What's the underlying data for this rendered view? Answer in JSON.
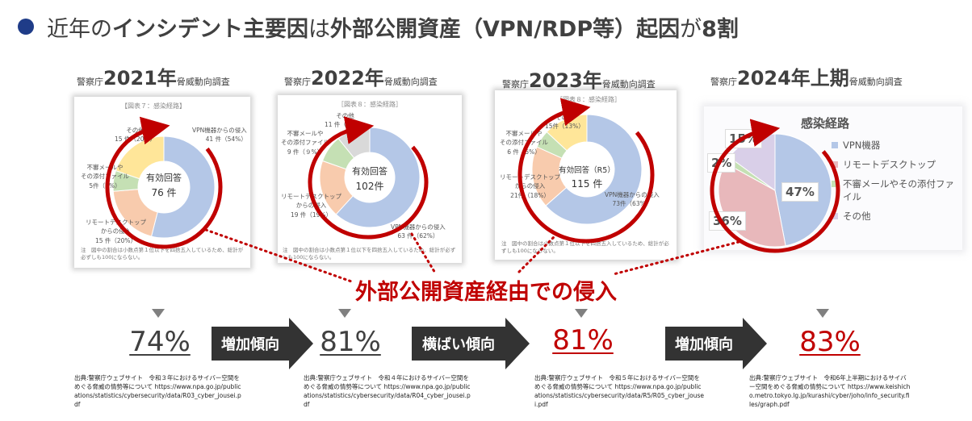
{
  "headline": {
    "part1": "近年の",
    "part2": "インシデント主要因",
    "part3": "は",
    "part4": "外部公開資産（VPN/RDP等）起因",
    "part5": "が",
    "part6": "8割"
  },
  "callout": "外部公開資産経由での侵入",
  "colors": {
    "bullet": "#1f3c88",
    "accent_red": "#c00000",
    "arrow_dark": "#333333",
    "vpn": "#b4c7e7",
    "rdp": "#f8cbad",
    "mail": "#c5e0b4",
    "other": "#ffe699",
    "other_gray": "#d9d9d9",
    "other_purple": "#d9cfe8",
    "rdp_2024": "#e8b8bb"
  },
  "reports": [
    {
      "prefix": "警察庁",
      "year": "2021年",
      "suffix": "脅威動向調査",
      "fig_title": "【図表７：感染経路】",
      "center_label": "有効回答",
      "center_value": "76 件",
      "labels": {
        "vpn": [
          "VPN機器からの侵入",
          "41 件（54%）"
        ],
        "rdp": [
          "リモートデスクトップ",
          "からの侵入",
          "15 件（20%）"
        ],
        "mail": [
          "不審メールや",
          "その添付ファイル",
          "5件（7%）"
        ],
        "other": [
          "その他",
          "15 件（20%）"
        ]
      },
      "note": "注　図中の割合は小数点第１位以下を四捨五入しているため、総計が必ずしも100にならない。",
      "rate": "74%",
      "source": "出典:警察庁ウェブサイト　令和３年におけるサイバー空間をめぐる脅威の情勢等について https://www.npa.go.jp/publications/statistics/cybersecurity/data/R03_cyber_jousei.pdf"
    },
    {
      "prefix": "警察庁",
      "year": "2022年",
      "suffix": "脅威動向調査",
      "fig_title": "［図表８：感染経路］",
      "center_label": "有効回答",
      "center_value": "102件",
      "labels": {
        "vpn": [
          "VPN機器からの侵入",
          "63 件（62%）"
        ],
        "rdp": [
          "リモートデスクトップ",
          "からの侵入",
          "19 件（19%）"
        ],
        "mail": [
          "不審メールや",
          "その添付ファイル",
          "9 件（９%）"
        ],
        "other": [
          "その他",
          "11 件（11%）"
        ]
      },
      "note": "注　図中の割合は小数点第１位以下を四捨五入しているため、総計が必ずしも100にならない。",
      "rate": "81%",
      "source": "出典:警察庁ウェブサイト　令和４年におけるサイバー空間をめぐる脅威の情勢等について https://www.npa.go.jp/publications/statistics/cybersecurity/data/R04_cyber_jousei.pdf"
    },
    {
      "prefix": "警察庁",
      "year": "2023年",
      "suffix": "脅威動向調査",
      "fig_title": "［図表８：感染経路］",
      "center_label": "有効回答（R5）",
      "center_value": "115 件",
      "labels": {
        "vpn": [
          "VPN機器からの侵入",
          "73件（63%）"
        ],
        "rdp": [
          "リモートデスクトップ",
          "からの侵入",
          "21件（18%）"
        ],
        "mail": [
          "不審メールや",
          "その添付ファイル",
          "6 件（5%）"
        ],
        "other": [
          "その他",
          "15件（13%）"
        ]
      },
      "note": "注　図中の割合は小数点第１位以下を四捨五入しているため、総計が必ずしも100にならない。",
      "rate": "81%",
      "source": "出典:警察庁ウェブサイト　令和５年におけるサイバー空間をめぐる脅威の情勢等について https://www.npa.go.jp/publications/statistics/cybersecurity/data/R5/R05_cyber_jousei.pdf"
    },
    {
      "prefix": "警察庁",
      "year": "2024年上期",
      "suffix": "脅威動向調査",
      "chart_title": "感染経路",
      "legend": [
        "VPN機器",
        "リモートデスクトップ",
        "不審メールやその添付ファイル",
        "その他"
      ],
      "slice_labels": [
        "47%",
        "36%",
        "2%",
        "15%"
      ],
      "rate": "83%",
      "source": "出典:警察庁ウェブサイト　令和6年上半期におけるサイバー空間をめぐる脅威の情勢について https://www.keishicho.metro.tokyo.lg.jp/kurashi/cyber/joho/info_security.files/graph.pdf"
    }
  ],
  "trends": [
    "増加傾向",
    "横ばい傾向",
    "増加傾向"
  ],
  "chart_data": [
    {
      "type": "pie",
      "title": "【図表７：感染経路】",
      "categories": [
        "VPN機器からの侵入",
        "リモートデスクトップからの侵入",
        "不審メールやその添付ファイル",
        "その他"
      ],
      "values": [
        41,
        15,
        5,
        15
      ],
      "total": 76
    },
    {
      "type": "pie",
      "title": "［図表８：感染経路］",
      "categories": [
        "VPN機器からの侵入",
        "リモートデスクトップからの侵入",
        "不審メールやその添付ファイル",
        "その他"
      ],
      "values": [
        63,
        19,
        9,
        11
      ],
      "total": 102
    },
    {
      "type": "pie",
      "title": "［図表８：感染経路］",
      "categories": [
        "VPN機器からの侵入",
        "リモートデスクトップからの侵入",
        "不審メールやその添付ファイル",
        "その他"
      ],
      "values": [
        73,
        21,
        6,
        15
      ],
      "total": 115
    },
    {
      "type": "pie",
      "title": "感染経路",
      "categories": [
        "VPN機器",
        "リモートデスクトップ",
        "不審メールやその添付ファイル",
        "その他"
      ],
      "values": [
        47,
        36,
        2,
        15
      ]
    },
    {
      "type": "bar",
      "categories": [
        "2021年",
        "2022年",
        "2023年",
        "2024年上期"
      ],
      "values": [
        74,
        81,
        81,
        83
      ]
    }
  ]
}
